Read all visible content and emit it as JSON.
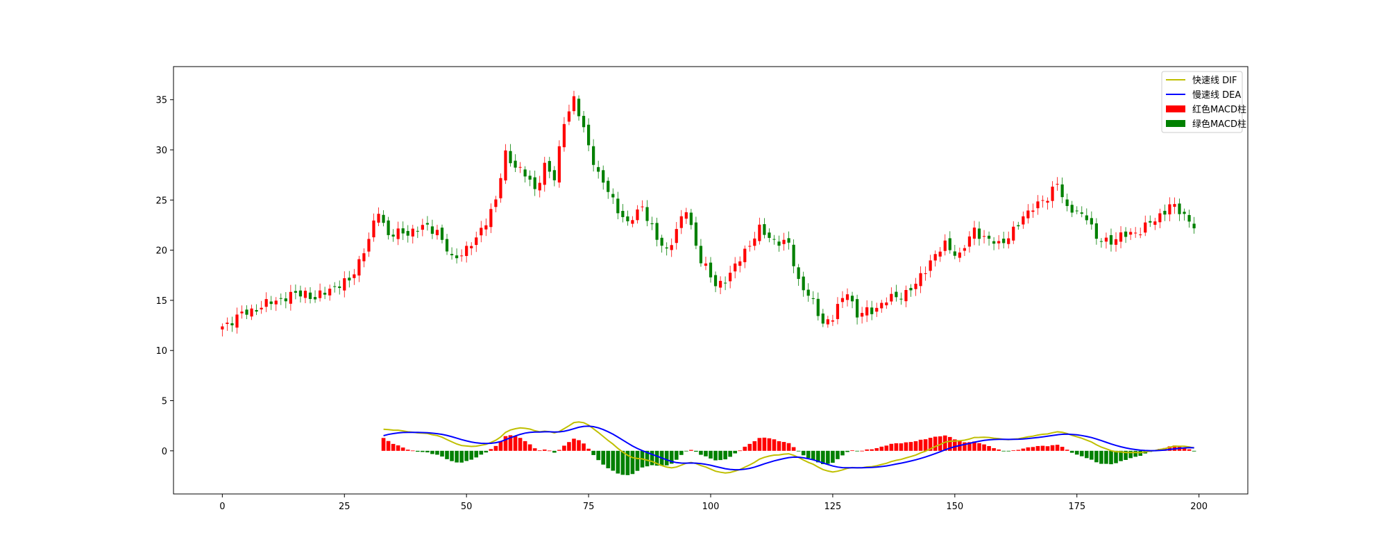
{
  "chart_data": {
    "type": "candlestick+macd",
    "title": "",
    "xlabel": "",
    "ylabel": "",
    "xlim": [
      -10,
      210
    ],
    "ylim": [
      -4.3,
      38.3
    ],
    "xticks": [
      0,
      25,
      50,
      75,
      100,
      125,
      150,
      175,
      200
    ],
    "yticks": [
      0,
      5,
      10,
      15,
      20,
      25,
      30,
      35
    ],
    "grid": false,
    "legend_location": "upper right",
    "colors": {
      "up": "#ff0000",
      "down": "#008000",
      "dif": "#bfbf00",
      "dea": "#0000ff",
      "axis": "#000000"
    },
    "legend": [
      {
        "label": "快速线 DIF",
        "kind": "line",
        "color": "#bfbf00"
      },
      {
        "label": "慢速线 DEA",
        "kind": "line",
        "color": "#0000ff"
      },
      {
        "label": "红色MACD柱",
        "kind": "patch",
        "color": "#ff0000"
      },
      {
        "label": "绿色MACD柱",
        "kind": "patch",
        "color": "#008000"
      }
    ],
    "close_anchors": [
      [
        0,
        12.4
      ],
      [
        4,
        13.6
      ],
      [
        8,
        14.4
      ],
      [
        12,
        15.2
      ],
      [
        17,
        15.8
      ],
      [
        19,
        15.1
      ],
      [
        22,
        16.2
      ],
      [
        26,
        16.9
      ],
      [
        30,
        21.0
      ],
      [
        32,
        24.0
      ],
      [
        34,
        21.5
      ],
      [
        38,
        21.8
      ],
      [
        41,
        22.3
      ],
      [
        44,
        22.0
      ],
      [
        47,
        19.0
      ],
      [
        52,
        21.0
      ],
      [
        56,
        25.0
      ],
      [
        58,
        29.5
      ],
      [
        62,
        27.5
      ],
      [
        64,
        26.0
      ],
      [
        66,
        28.5
      ],
      [
        68,
        27.0
      ],
      [
        70,
        33.0
      ],
      [
        72,
        35.0
      ],
      [
        74,
        32.0
      ],
      [
        77,
        27.5
      ],
      [
        80,
        25.0
      ],
      [
        83,
        22.5
      ],
      [
        86,
        24.5
      ],
      [
        89,
        21.0
      ],
      [
        91,
        20.0
      ],
      [
        93,
        22.0
      ],
      [
        95,
        24.0
      ],
      [
        98,
        19.0
      ],
      [
        101,
        16.5
      ],
      [
        104,
        17.5
      ],
      [
        107,
        20.0
      ],
      [
        110,
        22.0
      ],
      [
        113,
        21.0
      ],
      [
        116,
        20.5
      ],
      [
        118,
        17.0
      ],
      [
        120,
        15.5
      ],
      [
        123,
        12.8
      ],
      [
        125,
        13.3
      ],
      [
        128,
        16.0
      ],
      [
        130,
        13.5
      ],
      [
        133,
        14.0
      ],
      [
        136,
        15.0
      ],
      [
        139,
        15.5
      ],
      [
        142,
        16.5
      ],
      [
        145,
        19.0
      ],
      [
        148,
        20.5
      ],
      [
        151,
        19.5
      ],
      [
        154,
        22.0
      ],
      [
        157,
        21.0
      ],
      [
        159,
        20.5
      ],
      [
        163,
        22.5
      ],
      [
        166,
        24.5
      ],
      [
        169,
        25.0
      ],
      [
        171,
        27.0
      ],
      [
        173,
        24.0
      ],
      [
        177,
        23.5
      ],
      [
        179,
        21.0
      ],
      [
        182,
        21.0
      ],
      [
        185,
        21.5
      ],
      [
        188,
        22.0
      ],
      [
        191,
        23.0
      ],
      [
        194,
        24.5
      ],
      [
        197,
        23.5
      ],
      [
        199,
        22.5
      ]
    ]
  }
}
